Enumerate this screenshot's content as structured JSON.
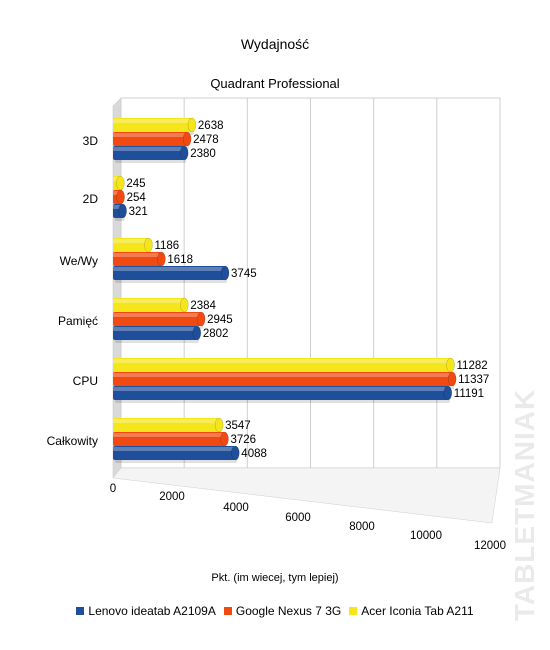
{
  "chart_data": {
    "type": "bar",
    "title": "Wydajność",
    "subtitle": "Quadrant Professional",
    "xlabel": "Pkt. (im wiecej, tym lepiej)",
    "categories": [
      "3D",
      "2D",
      "We/Wy",
      "Pamięć",
      "CPU",
      "Całkowity"
    ],
    "series": [
      {
        "name": "Lenovo ideatab A2109A",
        "color": "#1f4e9a",
        "values": [
          2380,
          321,
          3745,
          2802,
          11191,
          4088
        ]
      },
      {
        "name": "Google Nexus 7 3G",
        "color": "#f04a12",
        "values": [
          2478,
          254,
          1618,
          2945,
          11337,
          3726
        ]
      },
      {
        "name": "Acer Iconia Tab A211",
        "color": "#f5e51b",
        "values": [
          2638,
          245,
          1186,
          2384,
          11282,
          3547
        ]
      }
    ],
    "x_ticks": [
      "0",
      "2000",
      "4000",
      "6000",
      "8000",
      "10000",
      "12000"
    ],
    "xlim": [
      0,
      12000
    ],
    "grid": true,
    "legend_position": "bottom",
    "watermark": "TABLETMANIAK"
  }
}
